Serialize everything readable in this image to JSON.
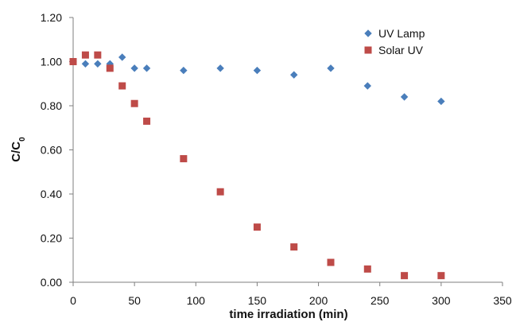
{
  "chart_data": {
    "type": "scatter",
    "xlabel": "time irradiation (min)",
    "ylabel": "C/C",
    "ylabel_subscript": "0",
    "xlim": [
      0,
      350
    ],
    "ylim": [
      0,
      1.2
    ],
    "x_ticks": [
      "0",
      "50",
      "100",
      "150",
      "200",
      "250",
      "300",
      "350"
    ],
    "y_ticks": [
      "0.00",
      "0.20",
      "0.40",
      "0.60",
      "0.80",
      "1.00",
      "1.20"
    ],
    "grid": false,
    "legend_position": "top-right",
    "series": [
      {
        "name": "UV Lamp",
        "marker": "diamond",
        "color": "#4a7ebb",
        "points": [
          [
            0,
            1.0
          ],
          [
            10,
            0.99
          ],
          [
            20,
            0.99
          ],
          [
            30,
            0.99
          ],
          [
            40,
            1.02
          ],
          [
            50,
            0.97
          ],
          [
            60,
            0.97
          ],
          [
            90,
            0.96
          ],
          [
            120,
            0.97
          ],
          [
            150,
            0.96
          ],
          [
            180,
            0.94
          ],
          [
            210,
            0.97
          ],
          [
            240,
            0.89
          ],
          [
            270,
            0.84
          ],
          [
            300,
            0.82
          ]
        ]
      },
      {
        "name": "Solar UV",
        "marker": "square",
        "color": "#be4b48",
        "points": [
          [
            0,
            1.0
          ],
          [
            10,
            1.03
          ],
          [
            20,
            1.03
          ],
          [
            30,
            0.97
          ],
          [
            40,
            0.89
          ],
          [
            50,
            0.81
          ],
          [
            60,
            0.73
          ],
          [
            90,
            0.56
          ],
          [
            120,
            0.41
          ],
          [
            150,
            0.25
          ],
          [
            180,
            0.16
          ],
          [
            210,
            0.09
          ],
          [
            240,
            0.06
          ],
          [
            270,
            0.03
          ],
          [
            300,
            0.03
          ]
        ]
      }
    ]
  }
}
